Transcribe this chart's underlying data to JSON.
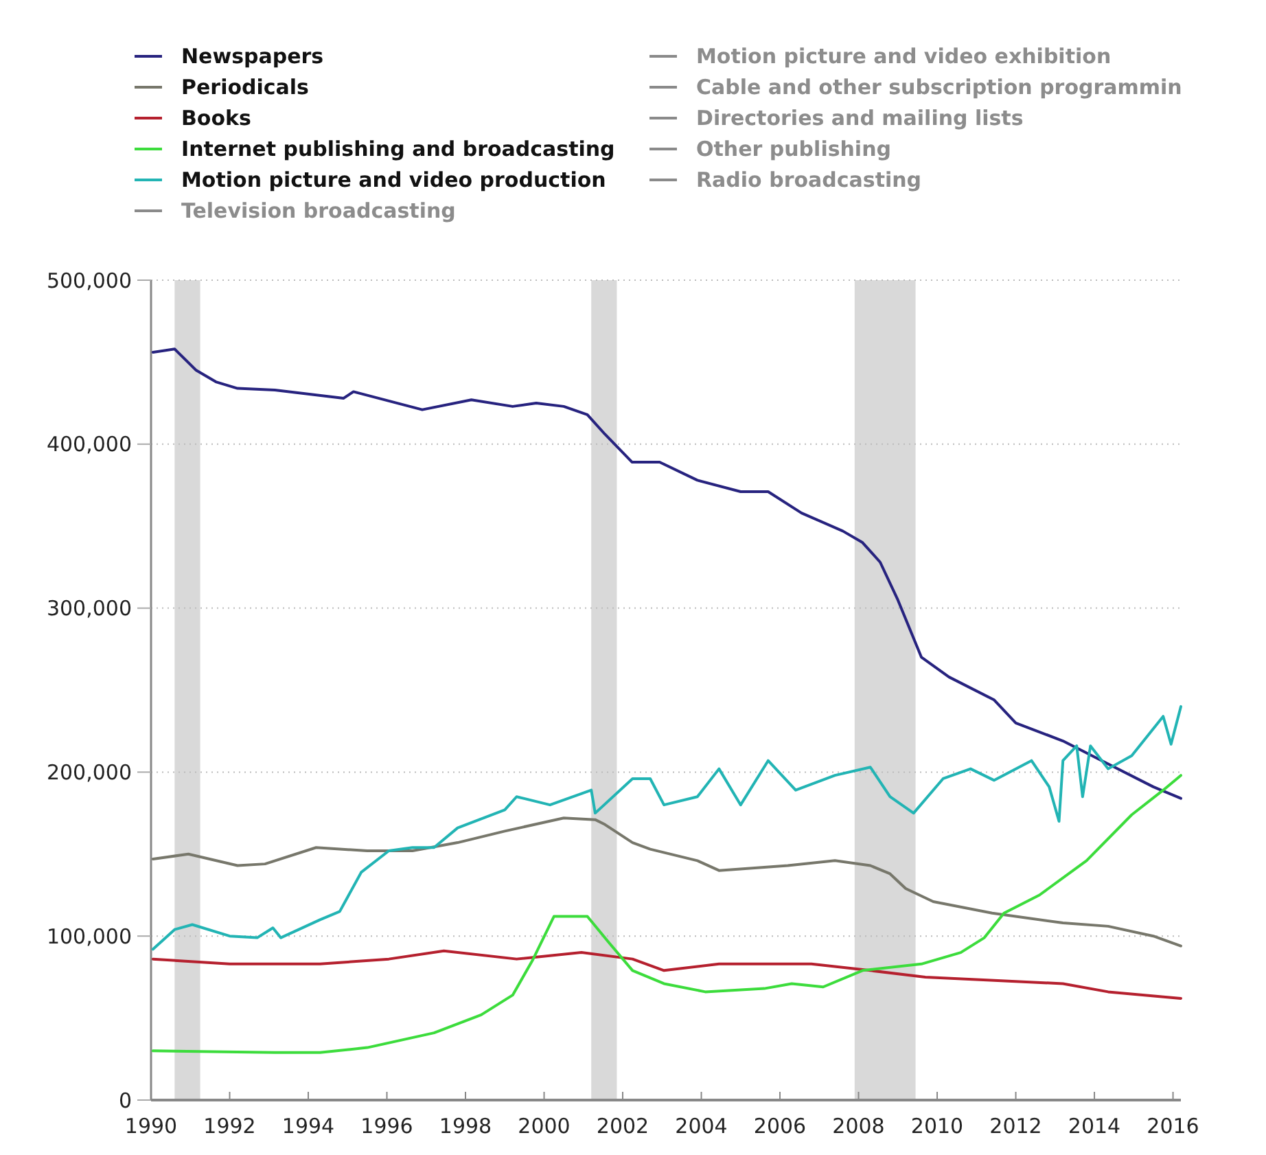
{
  "chart_data": {
    "type": "line",
    "xlim": [
      1990,
      2016.2
    ],
    "xticks": [
      1990,
      1992,
      1994,
      1996,
      1998,
      2000,
      2002,
      2004,
      2006,
      2008,
      2010,
      2012,
      2014,
      2016
    ],
    "ylim": [
      0,
      500000
    ],
    "yticks": [
      0,
      {
        "value": 100000,
        "label": "100,000"
      },
      {
        "value": 200000,
        "label": "200,000"
      },
      {
        "value": 300000,
        "label": "300,000"
      },
      {
        "value": 400000,
        "label": "400,000"
      },
      {
        "value": 500000,
        "label": "500,000"
      }
    ],
    "grid": "y",
    "legend": "top",
    "marker": "none",
    "line_style": "solid",
    "bands": [
      {
        "axis": "x",
        "from": 1990.6,
        "to": 1991.25,
        "color": "#d9d9d9"
      },
      {
        "axis": "x",
        "from": 2001.2,
        "to": 2001.85,
        "color": "#d9d9d9"
      },
      {
        "axis": "x",
        "from": 2007.9,
        "to": 2009.45,
        "color": "#d9d9d9"
      }
    ],
    "series": [
      {
        "name": "Newspapers",
        "color": "#27237f",
        "x": [
          1990.05,
          1990.6,
          1991.15,
          1991.65,
          1992.2,
          1993.15,
          1994.9,
          1995.15,
          1996.9,
          1998.15,
          1999.2,
          1999.8,
          2000.5,
          2001.1,
          2001.55,
          2002.24,
          2002.94,
          2003.9,
          2005.0,
          2005.7,
          2006.55,
          2007.6,
          2008.1,
          2008.55,
          2009.0,
          2009.6,
          2010.3,
          2011.45,
          2012.0,
          2013.2,
          2014.35,
          2015.5,
          2016.2
        ],
        "values": [
          456000,
          458000,
          445000,
          438000,
          434000,
          433000,
          428000,
          432000,
          421000,
          427000,
          423000,
          425000,
          423000,
          418000,
          406000,
          389000,
          389000,
          378000,
          371000,
          371000,
          358000,
          347000,
          340000,
          328000,
          305000,
          270000,
          258000,
          244000,
          230000,
          219000,
          205000,
          191000,
          184000
        ]
      },
      {
        "name": "Periodicals",
        "color": "#77776b",
        "x": [
          1990.05,
          1990.95,
          1992.2,
          1992.9,
          1994.2,
          1995.5,
          1996.65,
          1997.8,
          1999.0,
          2000.5,
          2001.3,
          2001.55,
          2002.25,
          2002.7,
          2003.9,
          2004.45,
          2006.2,
          2007.4,
          2008.3,
          2008.8,
          2009.2,
          2009.9,
          2011.4,
          2013.2,
          2014.35,
          2015.5,
          2016.2
        ],
        "values": [
          147000,
          150000,
          143000,
          144000,
          154000,
          152000,
          152000,
          157000,
          164000,
          172000,
          171000,
          168000,
          157000,
          153000,
          146000,
          140000,
          143000,
          146000,
          143000,
          138000,
          129000,
          121000,
          114000,
          108000,
          106000,
          100000,
          94000
        ]
      },
      {
        "name": "Books",
        "color": "#b5202e",
        "x": [
          1990.05,
          1992.0,
          1994.3,
          1996.05,
          1997.45,
          1999.3,
          2000.95,
          2002.25,
          2003.05,
          2004.45,
          2006.8,
          2008.3,
          2009.7,
          2011.45,
          2013.2,
          2014.35,
          2016.2
        ],
        "values": [
          86000,
          83000,
          83000,
          86000,
          91000,
          86000,
          90000,
          86000,
          79000,
          83000,
          83000,
          79000,
          75000,
          73000,
          71000,
          66000,
          62000
        ]
      },
      {
        "name": "Internet publishing and broadcasting",
        "color": "#3cdc3c",
        "x": [
          1990.05,
          1993.15,
          1994.3,
          1995.5,
          1997.2,
          1998.4,
          1999.2,
          1999.7,
          2000.25,
          2001.1,
          2001.65,
          2002.25,
          2003.05,
          2004.1,
          2005.6,
          2006.3,
          2007.1,
          2008.1,
          2009.6,
          2010.6,
          2011.2,
          2011.7,
          2012.6,
          2013.8,
          2014.95,
          2015.75,
          2016.2
        ],
        "values": [
          30000,
          29000,
          29000,
          32000,
          41000,
          52000,
          64000,
          85000,
          112000,
          112000,
          96000,
          79000,
          71000,
          66000,
          68000,
          71000,
          69000,
          79000,
          83000,
          90000,
          99000,
          114000,
          125000,
          146000,
          174000,
          189000,
          198000
        ]
      },
      {
        "name": "Motion picture and video production",
        "color": "#22b4b4",
        "x": [
          1990.05,
          1990.6,
          1991.05,
          1992.0,
          1992.7,
          1993.1,
          1993.3,
          1994.3,
          1994.8,
          1995.35,
          1996.05,
          1996.65,
          1997.2,
          1997.8,
          1999.0,
          1999.3,
          2000.15,
          2001.2,
          2001.3,
          2002.25,
          2002.7,
          2003.05,
          2003.9,
          2004.45,
          2005.0,
          2005.7,
          2006.4,
          2007.4,
          2008.3,
          2008.8,
          2009.4,
          2010.15,
          2010.85,
          2011.45,
          2012.4,
          2012.85,
          2013.1,
          2013.2,
          2013.55,
          2013.7,
          2013.9,
          2014.35,
          2014.95,
          2015.75,
          2015.95,
          2016.2
        ],
        "values": [
          92000,
          104000,
          107000,
          100000,
          99000,
          105000,
          99000,
          110000,
          115000,
          139000,
          152000,
          154000,
          154000,
          166000,
          177000,
          185000,
          180000,
          189000,
          175000,
          196000,
          196000,
          180000,
          185000,
          202000,
          180000,
          207000,
          189000,
          198000,
          203000,
          185000,
          175000,
          196000,
          202000,
          195000,
          207000,
          191000,
          170000,
          207000,
          216000,
          185000,
          216000,
          202000,
          210000,
          234000,
          217000,
          240000
        ]
      },
      {
        "name": "Television broadcasting",
        "color": "#8a8a8a"
      },
      {
        "name": "Motion picture and video exhibition",
        "color": "#8a8a8a"
      },
      {
        "name": "Cable and other subscription programmin",
        "color": "#8a8a8a"
      },
      {
        "name": "Directories and mailing lists",
        "color": "#8a8a8a"
      },
      {
        "name": "Other publishing",
        "color": "#8a8a8a"
      },
      {
        "name": "Radio broadcasting",
        "color": "#8a8a8a"
      }
    ]
  }
}
